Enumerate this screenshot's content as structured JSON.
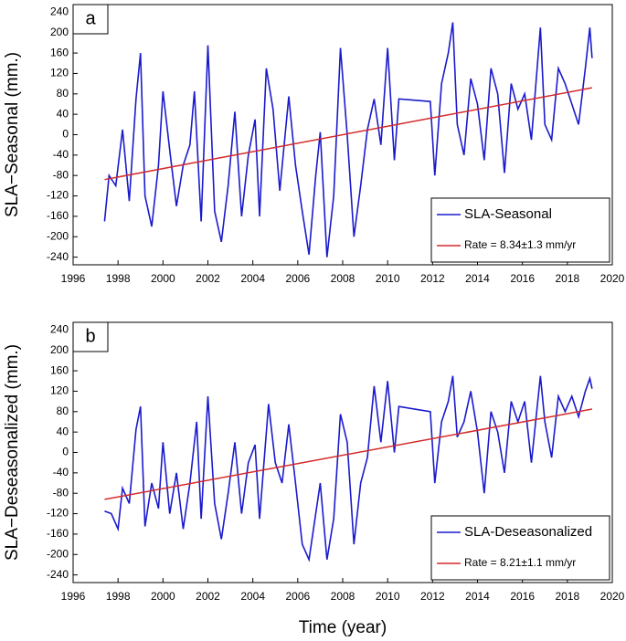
{
  "chart_data": [
    {
      "type": "line",
      "panel_label": "a",
      "ylabel": "SLA−Seasonal (mm.)",
      "xlim": [
        1996,
        2020
      ],
      "xticks": [
        1996,
        1998,
        2000,
        2002,
        2004,
        2006,
        2008,
        2010,
        2012,
        2014,
        2016,
        2018,
        2020
      ],
      "ylim": [
        -255,
        255
      ],
      "yticks": [
        -240,
        -200,
        -160,
        -120,
        -80,
        -40,
        0,
        40,
        80,
        120,
        160,
        200,
        240
      ],
      "legend": "lower right",
      "x": [
        1997.4,
        1997.6,
        1997.9,
        1998.2,
        1998.5,
        1998.8,
        1999.0,
        1999.2,
        1999.5,
        1999.8,
        2000.0,
        2000.3,
        2000.6,
        2000.9,
        2001.2,
        2001.4,
        2001.7,
        2002.0,
        2002.3,
        2002.6,
        2002.9,
        2003.2,
        2003.5,
        2003.8,
        2004.1,
        2004.3,
        2004.6,
        2004.9,
        2005.2,
        2005.6,
        2005.9,
        2006.2,
        2006.5,
        2006.8,
        2007.0,
        2007.3,
        2007.6,
        2007.9,
        2008.2,
        2008.5,
        2008.8,
        2009.1,
        2009.4,
        2009.7,
        2010.0,
        2010.3,
        2010.5,
        2011.9,
        2012.1,
        2012.4,
        2012.7,
        2012.9,
        2013.1,
        2013.4,
        2013.7,
        2014.0,
        2014.3,
        2014.6,
        2014.9,
        2015.2,
        2015.5,
        2015.8,
        2016.1,
        2016.4,
        2016.8,
        2017.0,
        2017.3,
        2017.6,
        2017.9,
        2018.2,
        2018.5,
        2018.8,
        2019.0,
        2019.1
      ],
      "series": [
        {
          "name": "SLA-Seasonal",
          "color": "#1a1acd",
          "values": [
            -170,
            -80,
            -100,
            10,
            -130,
            70,
            160,
            -120,
            -180,
            -60,
            85,
            -30,
            -140,
            -60,
            -20,
            85,
            -170,
            175,
            -150,
            -210,
            -100,
            45,
            -160,
            -40,
            30,
            -160,
            130,
            50,
            -110,
            75,
            -60,
            -150,
            -235,
            -80,
            5,
            -240,
            -120,
            170,
            0,
            -200,
            -100,
            10,
            70,
            -20,
            170,
            -50,
            70,
            65,
            -80,
            100,
            160,
            220,
            20,
            -40,
            110,
            60,
            -50,
            130,
            80,
            -75,
            100,
            50,
            80,
            -10,
            210,
            20,
            -10,
            130,
            100,
            60,
            20,
            130,
            210,
            150
          ]
        },
        {
          "name": "Rate = 8.34±1.3 mm/yr",
          "color": "#d42a2a",
          "x": [
            1997.4,
            2019.1
          ],
          "values": [
            -88,
            92
          ]
        }
      ]
    },
    {
      "type": "line",
      "panel_label": "b",
      "ylabel": "SLA−Deseasonalized (mm.)",
      "xlabel": "Time (year)",
      "xlim": [
        1996,
        2020
      ],
      "xticks": [
        1996,
        1998,
        2000,
        2002,
        2004,
        2006,
        2008,
        2010,
        2012,
        2014,
        2016,
        2018,
        2020
      ],
      "ylim": [
        -255,
        255
      ],
      "yticks": [
        -240,
        -200,
        -160,
        -120,
        -80,
        -40,
        0,
        40,
        80,
        120,
        160,
        200,
        240
      ],
      "legend": "lower right",
      "x": [
        1997.4,
        1997.7,
        1998.0,
        1998.2,
        1998.5,
        1998.8,
        1999.0,
        1999.2,
        1999.5,
        1999.8,
        2000.0,
        2000.3,
        2000.6,
        2000.9,
        2001.2,
        2001.5,
        2001.7,
        2002.0,
        2002.3,
        2002.6,
        2002.9,
        2003.2,
        2003.5,
        2003.8,
        2004.1,
        2004.3,
        2004.7,
        2005.0,
        2005.3,
        2005.6,
        2005.9,
        2006.2,
        2006.5,
        2006.8,
        2007.0,
        2007.3,
        2007.6,
        2007.9,
        2008.2,
        2008.5,
        2008.8,
        2009.1,
        2009.4,
        2009.7,
        2010.0,
        2010.3,
        2010.5,
        2011.9,
        2012.1,
        2012.4,
        2012.7,
        2012.9,
        2013.1,
        2013.4,
        2013.7,
        2014.0,
        2014.3,
        2014.6,
        2014.9,
        2015.2,
        2015.5,
        2015.8,
        2016.1,
        2016.4,
        2016.8,
        2017.0,
        2017.3,
        2017.6,
        2017.9,
        2018.2,
        2018.5,
        2018.8,
        2019.0,
        2019.1
      ],
      "series": [
        {
          "name": "SLA-Deseasonalized",
          "color": "#1a1acd",
          "values": [
            -115,
            -120,
            -150,
            -70,
            -100,
            45,
            90,
            -145,
            -60,
            -110,
            20,
            -120,
            -40,
            -150,
            -60,
            60,
            -130,
            110,
            -100,
            -170,
            -80,
            20,
            -120,
            -20,
            15,
            -130,
            95,
            -20,
            -60,
            55,
            -60,
            -180,
            -210,
            -120,
            -60,
            -210,
            -130,
            75,
            20,
            -180,
            -60,
            -10,
            130,
            20,
            140,
            0,
            90,
            80,
            -60,
            60,
            100,
            150,
            30,
            60,
            120,
            40,
            -80,
            80,
            40,
            -40,
            100,
            60,
            100,
            -20,
            150,
            60,
            -10,
            110,
            80,
            110,
            70,
            120,
            145,
            125
          ]
        },
        {
          "name": "Rate = 8.21±1.1 mm/yr",
          "color": "#d42a2a",
          "x": [
            1997.4,
            2019.1
          ],
          "values": [
            -92,
            85
          ]
        }
      ]
    }
  ]
}
